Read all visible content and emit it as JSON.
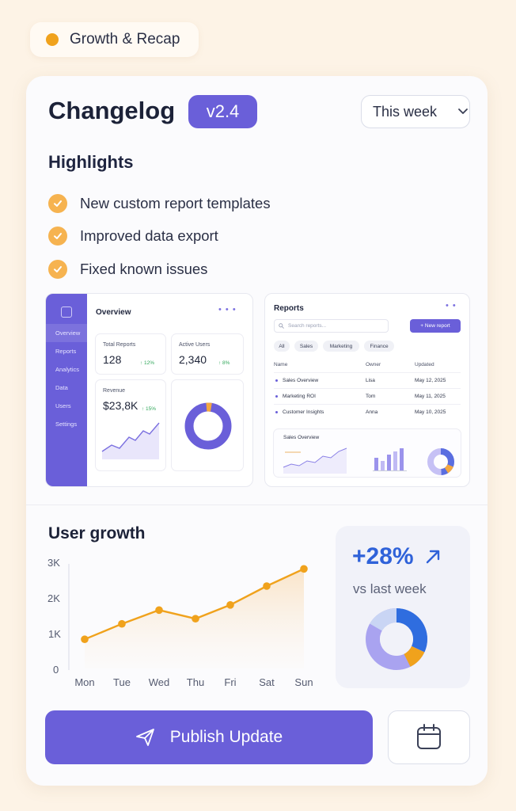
{
  "top_badge": {
    "label": "Growth & Recap"
  },
  "header": {
    "title": "Changelog",
    "version": "v2.4",
    "period": "This week"
  },
  "highlights": {
    "heading": "Highlights",
    "items": [
      "New custom report templates",
      "Improved data export",
      "Fixed known issues"
    ]
  },
  "preview_overview": {
    "title": "Overview",
    "nav": [
      "Overview",
      "Reports",
      "Analytics",
      "Data",
      "Users",
      "Settings"
    ],
    "total_reports": {
      "label": "Total Reports",
      "value": "128",
      "change": "↑ 12%"
    },
    "active_users": {
      "label": "Active Users",
      "value": "2,340",
      "change": "↑ 8%"
    },
    "revenue": {
      "label": "Revenue",
      "value": "$23,8K",
      "change": "↑ 15%"
    }
  },
  "preview_reports": {
    "title": "Reports",
    "search_placeholder": "Search reports...",
    "new_button": "+ New report",
    "filters": [
      "All",
      "Sales",
      "Marketing",
      "Finance"
    ],
    "columns": [
      "Name",
      "Owner",
      "Updated"
    ],
    "rows": [
      [
        "Sales Overview",
        "Lisa",
        "May 12, 2025"
      ],
      [
        "Marketing ROI",
        "Tom",
        "May 11, 2025"
      ],
      [
        "Customer Insights",
        "Anna",
        "May 10, 2025"
      ]
    ],
    "sub_title": "Sales Overview"
  },
  "user_growth": {
    "title": "User growth",
    "stat": {
      "value": "+28%",
      "caption": "vs last week"
    }
  },
  "chart_data": {
    "type": "area",
    "title": "User growth",
    "x": [
      "Mon",
      "Tue",
      "Wed",
      "Thu",
      "Fri",
      "Sat",
      "Sun"
    ],
    "values": [
      850,
      1300,
      1700,
      1450,
      1850,
      2400,
      2900
    ],
    "yticks": [
      "0",
      "1K",
      "2K",
      "3K"
    ],
    "ylim": [
      0,
      3000
    ],
    "color": "#f0a21c"
  },
  "actions": {
    "publish": "Publish Update"
  },
  "colors": {
    "accent": "#6a5fd9",
    "highlight": "#f0a21c",
    "stat": "#2f62d9"
  }
}
